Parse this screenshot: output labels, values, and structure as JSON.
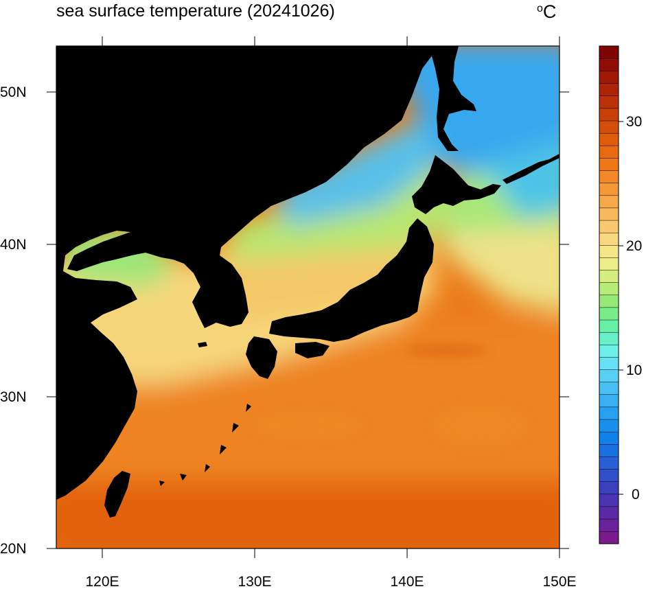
{
  "title": "sea surface temperature (20241026)",
  "unit": {
    "degree_symbol": "o",
    "letter": "C"
  },
  "lon_ticks": [
    "120E",
    "130E",
    "140E",
    "150E"
  ],
  "lat_ticks": [
    "50N",
    "40N",
    "30N",
    "20N"
  ],
  "colorbar": {
    "ticks": [
      "30",
      "20",
      "10",
      "0"
    ],
    "colors_bottom_to_top": [
      "#7a1a8c",
      "#6a229a",
      "#5a2aa6",
      "#4a34b2",
      "#3c40be",
      "#3050c8",
      "#2660d4",
      "#1a70e0",
      "#1080ea",
      "#1a90ee",
      "#28a0f0",
      "#38b0f2",
      "#48c0f4",
      "#58d0f6",
      "#68e0f8",
      "#6ef0ea",
      "#6af0c8",
      "#68f0a8",
      "#78ec88",
      "#98ea78",
      "#b8ec78",
      "#d6ee80",
      "#ecee88",
      "#f6e68a",
      "#fad882",
      "#fac870",
      "#f8b85c",
      "#f6a84a",
      "#f49838",
      "#f28828",
      "#f07818",
      "#e86a10",
      "#de5c0c",
      "#d44e0a",
      "#c84008",
      "#bc3208",
      "#ae2406",
      "#a01806",
      "#900c04",
      "#800404"
    ]
  },
  "colors": {
    "land": "#000000",
    "frame": "#000000"
  }
}
